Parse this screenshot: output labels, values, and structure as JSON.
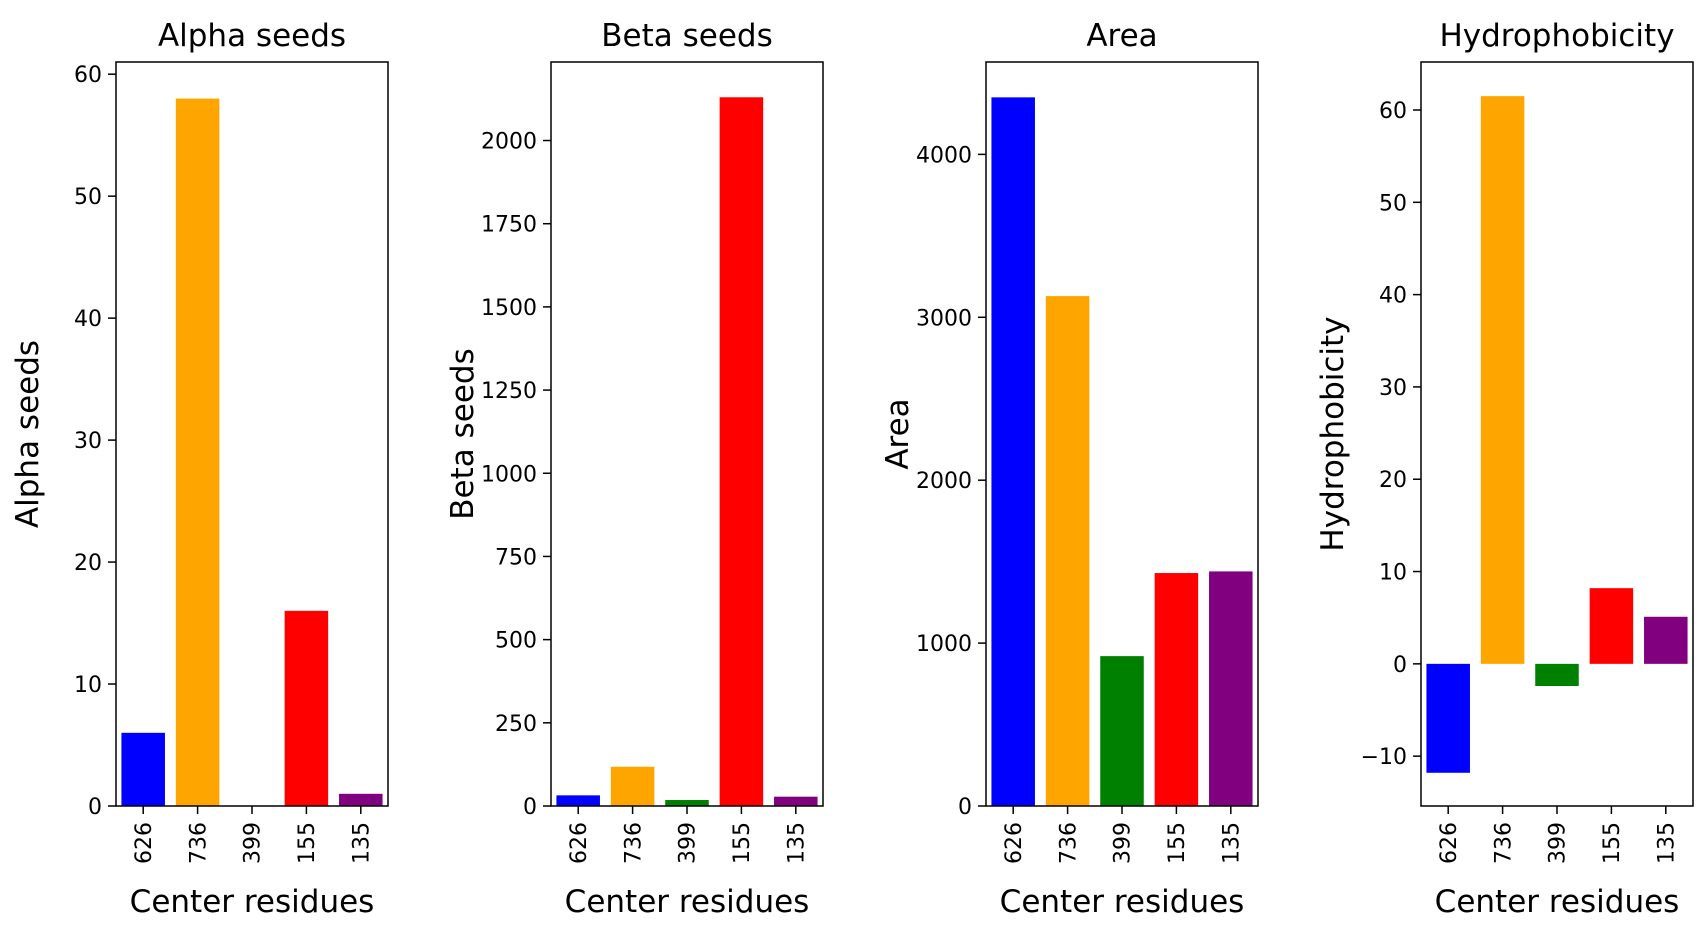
{
  "chart_data": [
    {
      "type": "bar",
      "title": "Alpha seeds",
      "xlabel": "Center residues",
      "ylabel": "Alpha seeds",
      "categories": [
        "626",
        "736",
        "399",
        "155",
        "135"
      ],
      "values": [
        6,
        58,
        0,
        16,
        1
      ],
      "colors": [
        "#0000ff",
        "#ffa500",
        "#008000",
        "#ff0000",
        "#800080"
      ],
      "ylim": [
        0,
        61
      ],
      "yticks": [
        0,
        10,
        20,
        30,
        40,
        50,
        60
      ],
      "ytick_labels": [
        "0",
        "10",
        "20",
        "30",
        "40",
        "50",
        "60"
      ],
      "grid": false
    },
    {
      "type": "bar",
      "title": "Beta seeds",
      "xlabel": "Center residues",
      "ylabel": "Beta seeds",
      "categories": [
        "626",
        "736",
        "399",
        "155",
        "135"
      ],
      "values": [
        32,
        118,
        18,
        2130,
        28
      ],
      "colors": [
        "#0000ff",
        "#ffa500",
        "#008000",
        "#ff0000",
        "#800080"
      ],
      "ylim": [
        0,
        2236
      ],
      "yticks": [
        0,
        250,
        500,
        750,
        1000,
        1250,
        1500,
        1750,
        2000
      ],
      "ytick_labels": [
        "0",
        "250",
        "500",
        "750",
        "1000",
        "1250",
        "1500",
        "1750",
        "2000"
      ],
      "grid": false
    },
    {
      "type": "bar",
      "title": "Area",
      "xlabel": "Center residues",
      "ylabel": "Area",
      "categories": [
        "626",
        "736",
        "399",
        "155",
        "135"
      ],
      "values": [
        4350,
        3130,
        920,
        1430,
        1440
      ],
      "colors": [
        "#0000ff",
        "#ffa500",
        "#008000",
        "#ff0000",
        "#800080"
      ],
      "ylim": [
        0,
        4567
      ],
      "yticks": [
        0,
        1000,
        2000,
        3000,
        4000
      ],
      "ytick_labels": [
        "0",
        "1000",
        "2000",
        "3000",
        "4000"
      ],
      "grid": false
    },
    {
      "type": "bar",
      "title": "Hydrophobicity",
      "xlabel": "Center residues",
      "ylabel": "Hydrophobicity",
      "categories": [
        "626",
        "736",
        "399",
        "155",
        "135"
      ],
      "values": [
        -11.8,
        61.5,
        -2.4,
        8.2,
        5.1
      ],
      "colors": [
        "#0000ff",
        "#ffa500",
        "#008000",
        "#ff0000",
        "#800080"
      ],
      "ylim": [
        -15.4,
        65.2
      ],
      "yticks": [
        -10,
        0,
        10,
        20,
        30,
        40,
        50,
        60
      ],
      "ytick_labels": [
        "−10",
        "0",
        "10",
        "20",
        "30",
        "40",
        "50",
        "60"
      ],
      "grid": false
    }
  ]
}
